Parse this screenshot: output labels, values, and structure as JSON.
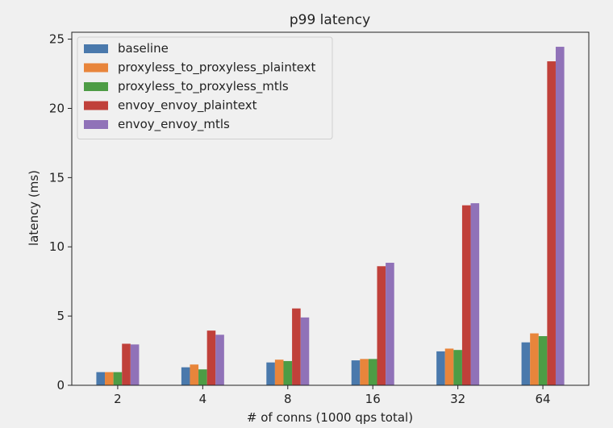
{
  "chart_data": {
    "type": "bar",
    "title": "p99 latency",
    "xlabel": "# of conns (1000 qps total)",
    "ylabel": "latency (ms)",
    "categories": [
      "2",
      "4",
      "8",
      "16",
      "32",
      "64"
    ],
    "ylim": [
      0,
      25.5
    ],
    "yticks": [
      0,
      5,
      10,
      15,
      20,
      25
    ],
    "grid": false,
    "legend_position": "top-left",
    "series": [
      {
        "name": "baseline",
        "color": "#4a79ac",
        "values": [
          0.95,
          1.3,
          1.65,
          1.8,
          2.45,
          3.1
        ]
      },
      {
        "name": "proxyless_to_proxyless_plaintext",
        "color": "#e8853b",
        "values": [
          0.95,
          1.5,
          1.85,
          1.9,
          2.65,
          3.75
        ]
      },
      {
        "name": "proxyless_to_proxyless_mtls",
        "color": "#4d9c45",
        "values": [
          0.95,
          1.15,
          1.75,
          1.9,
          2.55,
          3.55
        ]
      },
      {
        "name": "envoy_envoy_plaintext",
        "color": "#c0403a",
        "values": [
          3.0,
          3.95,
          5.55,
          8.6,
          13.0,
          23.4
        ]
      },
      {
        "name": "envoy_envoy_mtls",
        "color": "#9072b8",
        "values": [
          2.95,
          3.65,
          4.9,
          8.85,
          13.15,
          24.45
        ]
      }
    ]
  }
}
